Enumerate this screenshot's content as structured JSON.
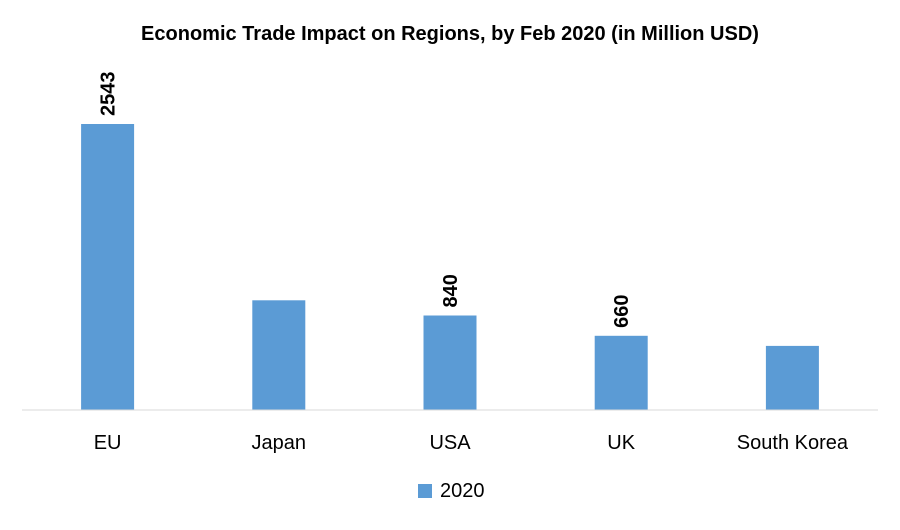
{
  "chart_data": {
    "type": "bar",
    "title": "Economic Trade Impact on Regions, by Feb 2020 (in Million USD)",
    "categories": [
      "EU",
      "Japan",
      "USA",
      "UK",
      "South Korea"
    ],
    "series": [
      {
        "name": "2020",
        "values": [
          2543,
          975,
          840,
          660,
          570
        ],
        "data_labels": [
          "2543",
          null,
          "840",
          "660",
          null
        ],
        "color": "#5b9bd5"
      }
    ],
    "ylim": [
      0,
      2543
    ],
    "grid": false,
    "legend_position": "bottom",
    "axis_color": "#d9d9d9"
  }
}
